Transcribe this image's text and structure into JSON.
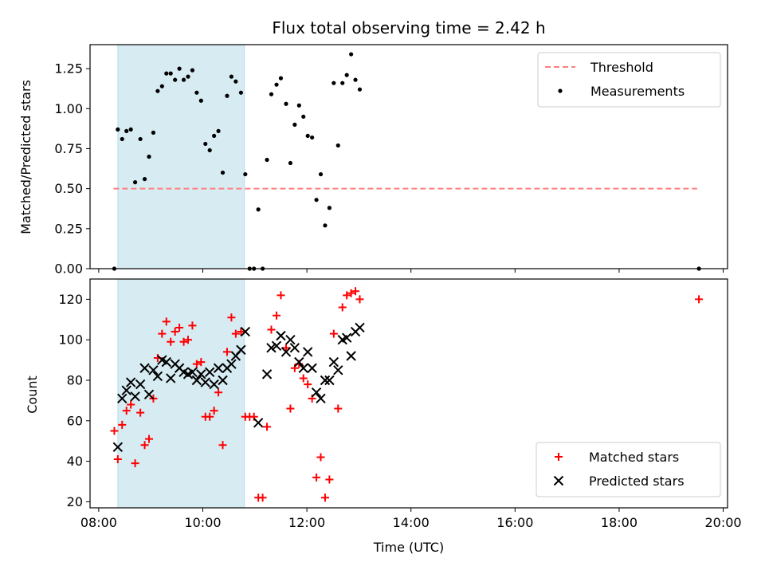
{
  "chart_data": [
    {
      "type": "scatter",
      "title": "Flux total observing time = 2.42 h",
      "ylabel": "Matched/Predicted stars",
      "xlabel": "",
      "x_axis": "time",
      "xlim": [
        "07:50",
        "20:05"
      ],
      "ylim": [
        0,
        1.4
      ],
      "x_ticks": [
        "08:00",
        "10:00",
        "12:00",
        "14:00",
        "16:00",
        "18:00",
        "20:00"
      ],
      "y_ticks": [
        0.0,
        0.25,
        0.5,
        0.75,
        1.0,
        1.25
      ],
      "y_tick_labels": [
        "0.00",
        "0.25",
        "0.50",
        "0.75",
        "1.00",
        "1.25"
      ],
      "shaded_span": {
        "x_start": "08:22",
        "x_end": "10:48",
        "color": "#add8e6"
      },
      "legend_position": "top-right",
      "grid": false,
      "series": [
        {
          "name": "Threshold",
          "kind": "line",
          "style": "dashed",
          "color": "#ff7f7f",
          "x": [
            "08:17",
            "19:30"
          ],
          "y": [
            0.5,
            0.5
          ]
        },
        {
          "name": "Measurements",
          "kind": "scatter",
          "marker": "dot",
          "color": "#000000",
          "points": [
            [
              "08:18",
              0.0
            ],
            [
              "08:22",
              0.87
            ],
            [
              "08:27",
              0.81
            ],
            [
              "08:32",
              0.86
            ],
            [
              "08:37",
              0.87
            ],
            [
              "08:42",
              0.54
            ],
            [
              "08:48",
              0.81
            ],
            [
              "08:53",
              0.56
            ],
            [
              "08:58",
              0.7
            ],
            [
              "09:03",
              0.85
            ],
            [
              "09:08",
              1.11
            ],
            [
              "09:13",
              1.14
            ],
            [
              "09:18",
              1.22
            ],
            [
              "09:23",
              1.22
            ],
            [
              "09:28",
              1.18
            ],
            [
              "09:33",
              1.25
            ],
            [
              "09:38",
              1.18
            ],
            [
              "09:43",
              1.2
            ],
            [
              "09:48",
              1.24
            ],
            [
              "09:53",
              1.1
            ],
            [
              "09:58",
              1.05
            ],
            [
              "10:03",
              0.78
            ],
            [
              "10:08",
              0.74
            ],
            [
              "10:13",
              0.83
            ],
            [
              "10:18",
              0.86
            ],
            [
              "10:23",
              0.6
            ],
            [
              "10:28",
              1.08
            ],
            [
              "10:33",
              1.2
            ],
            [
              "10:38",
              1.17
            ],
            [
              "10:44",
              1.1
            ],
            [
              "10:49",
              0.59
            ],
            [
              "10:54",
              0.0
            ],
            [
              "10:59",
              0.0
            ],
            [
              "11:04",
              0.37
            ],
            [
              "11:09",
              0.0
            ],
            [
              "11:14",
              0.68
            ],
            [
              "11:19",
              1.09
            ],
            [
              "11:25",
              1.15
            ],
            [
              "11:30",
              1.19
            ],
            [
              "11:36",
              1.03
            ],
            [
              "11:41",
              0.66
            ],
            [
              "11:46",
              0.9
            ],
            [
              "11:51",
              1.02
            ],
            [
              "11:56",
              0.95
            ],
            [
              "12:01",
              0.83
            ],
            [
              "12:06",
              0.82
            ],
            [
              "12:11",
              0.43
            ],
            [
              "12:16",
              0.59
            ],
            [
              "12:21",
              0.27
            ],
            [
              "12:26",
              0.38
            ],
            [
              "12:31",
              1.16
            ],
            [
              "12:36",
              0.77
            ],
            [
              "12:41",
              1.16
            ],
            [
              "12:46",
              1.21
            ],
            [
              "12:51",
              1.34
            ],
            [
              "12:56",
              1.18
            ],
            [
              "13:01",
              1.12
            ],
            [
              "19:32",
              0.0
            ]
          ]
        }
      ]
    },
    {
      "type": "scatter",
      "title": "",
      "ylabel": "Count",
      "xlabel": "Time (UTC)",
      "x_axis": "time",
      "xlim": [
        "07:50",
        "20:05"
      ],
      "ylim": [
        17,
        130
      ],
      "x_ticks": [
        "08:00",
        "10:00",
        "12:00",
        "14:00",
        "16:00",
        "18:00",
        "20:00"
      ],
      "y_ticks": [
        20,
        40,
        60,
        80,
        100,
        120
      ],
      "y_tick_labels": [
        "20",
        "40",
        "60",
        "80",
        "100",
        "120"
      ],
      "shaded_span": {
        "x_start": "08:22",
        "x_end": "10:48",
        "color": "#add8e6"
      },
      "legend_position": "bottom-right",
      "grid": false,
      "series": [
        {
          "name": "Matched stars",
          "kind": "scatter",
          "marker": "plus",
          "color": "#ff0000",
          "points": [
            [
              "08:18",
              55
            ],
            [
              "08:22",
              41
            ],
            [
              "08:27",
              58
            ],
            [
              "08:32",
              65
            ],
            [
              "08:37",
              68
            ],
            [
              "08:42",
              39
            ],
            [
              "08:48",
              64
            ],
            [
              "08:53",
              48
            ],
            [
              "08:58",
              51
            ],
            [
              "09:03",
              71
            ],
            [
              "09:08",
              91
            ],
            [
              "09:13",
              103
            ],
            [
              "09:18",
              109
            ],
            [
              "09:23",
              99
            ],
            [
              "09:28",
              104
            ],
            [
              "09:33",
              106
            ],
            [
              "09:38",
              99
            ],
            [
              "09:43",
              100
            ],
            [
              "09:48",
              107
            ],
            [
              "09:53",
              88
            ],
            [
              "09:58",
              89
            ],
            [
              "10:03",
              62
            ],
            [
              "10:08",
              62
            ],
            [
              "10:13",
              65
            ],
            [
              "10:18",
              74
            ],
            [
              "10:23",
              48
            ],
            [
              "10:28",
              94
            ],
            [
              "10:33",
              111
            ],
            [
              "10:38",
              103
            ],
            [
              "10:44",
              104
            ],
            [
              "10:49",
              62
            ],
            [
              "10:54",
              62
            ],
            [
              "10:59",
              62
            ],
            [
              "11:04",
              22
            ],
            [
              "11:09",
              22
            ],
            [
              "11:14",
              57
            ],
            [
              "11:19",
              105
            ],
            [
              "11:25",
              112
            ],
            [
              "11:30",
              122
            ],
            [
              "11:36",
              96
            ],
            [
              "11:41",
              66
            ],
            [
              "11:46",
              86
            ],
            [
              "11:51",
              88
            ],
            [
              "11:56",
              81
            ],
            [
              "12:01",
              78
            ],
            [
              "12:06",
              71
            ],
            [
              "12:11",
              32
            ],
            [
              "12:16",
              42
            ],
            [
              "12:21",
              22
            ],
            [
              "12:26",
              31
            ],
            [
              "12:31",
              103
            ],
            [
              "12:36",
              66
            ],
            [
              "12:41",
              116
            ],
            [
              "12:46",
              122
            ],
            [
              "12:51",
              123
            ],
            [
              "12:56",
              124
            ],
            [
              "13:01",
              120
            ],
            [
              "19:32",
              120
            ]
          ]
        },
        {
          "name": "Predicted stars",
          "kind": "scatter",
          "marker": "x",
          "color": "#000000",
          "points": [
            [
              "08:22",
              47
            ],
            [
              "08:27",
              71
            ],
            [
              "08:32",
              75
            ],
            [
              "08:37",
              79
            ],
            [
              "08:42",
              72
            ],
            [
              "08:48",
              78
            ],
            [
              "08:53",
              86
            ],
            [
              "08:58",
              73
            ],
            [
              "09:03",
              85
            ],
            [
              "09:08",
              82
            ],
            [
              "09:13",
              90
            ],
            [
              "09:18",
              89
            ],
            [
              "09:23",
              81
            ],
            [
              "09:28",
              88
            ],
            [
              "09:33",
              86
            ],
            [
              "09:38",
              84
            ],
            [
              "09:43",
              83
            ],
            [
              "09:48",
              84
            ],
            [
              "09:53",
              80
            ],
            [
              "09:58",
              83
            ],
            [
              "10:03",
              79
            ],
            [
              "10:08",
              84
            ],
            [
              "10:13",
              78
            ],
            [
              "10:18",
              86
            ],
            [
              "10:23",
              80
            ],
            [
              "10:28",
              86
            ],
            [
              "10:33",
              88
            ],
            [
              "10:38",
              92
            ],
            [
              "10:44",
              95
            ],
            [
              "10:49",
              104
            ],
            [
              "11:04",
              59
            ],
            [
              "11:14",
              83
            ],
            [
              "11:19",
              96
            ],
            [
              "11:25",
              97
            ],
            [
              "11:30",
              102
            ],
            [
              "11:36",
              94
            ],
            [
              "11:41",
              100
            ],
            [
              "11:46",
              96
            ],
            [
              "11:51",
              89
            ],
            [
              "11:56",
              86
            ],
            [
              "12:01",
              94
            ],
            [
              "12:06",
              86
            ],
            [
              "12:11",
              74
            ],
            [
              "12:16",
              71
            ],
            [
              "12:21",
              80
            ],
            [
              "12:26",
              80
            ],
            [
              "12:31",
              89
            ],
            [
              "12:36",
              85
            ],
            [
              "12:41",
              100
            ],
            [
              "12:46",
              101
            ],
            [
              "12:51",
              92
            ],
            [
              "12:56",
              104
            ],
            [
              "13:01",
              106
            ]
          ]
        }
      ]
    }
  ]
}
